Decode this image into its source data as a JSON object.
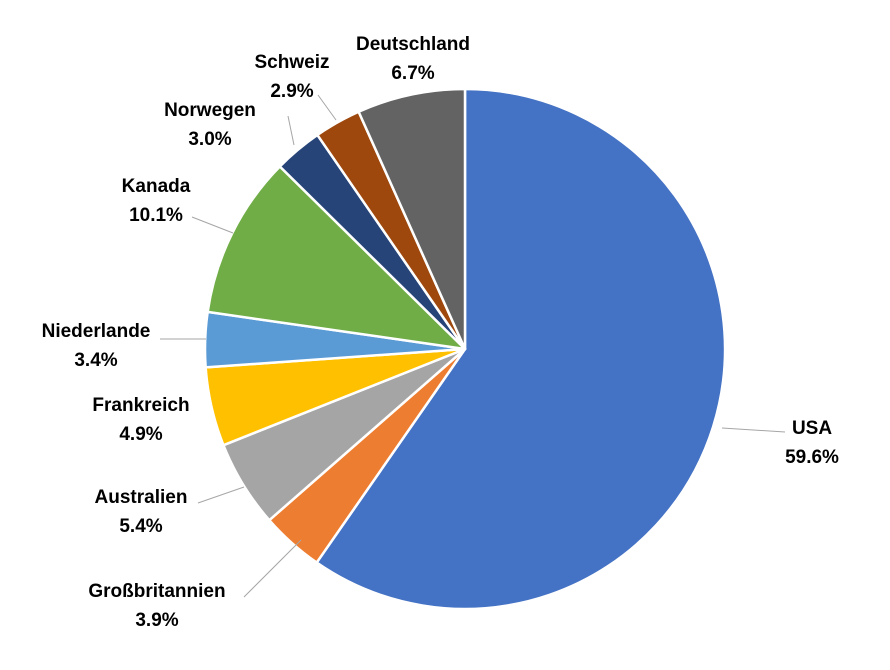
{
  "chart_data": {
    "type": "pie",
    "title": "",
    "start": "12 o'clock",
    "direction": "clockwise",
    "categories": [
      "USA",
      "Großbritannien",
      "Australien",
      "Frankreich",
      "Niederlande",
      "Kanada",
      "Norwegen",
      "Schweiz",
      "Deutschland"
    ],
    "values": [
      59.6,
      3.9,
      5.4,
      4.9,
      3.4,
      10.1,
      3.0,
      2.9,
      6.7
    ],
    "value_labels": [
      "59.6%",
      "3.9%",
      "5.4%",
      "4.9%",
      "3.4%",
      "10.1%",
      "3.0%",
      "2.9%",
      "6.7%"
    ],
    "colors": [
      "#4472C4",
      "#ED7D31",
      "#A5A5A5",
      "#FFC000",
      "#5B9BD5",
      "#70AD47",
      "#264478",
      "#9E480E",
      "#636363"
    ],
    "slice_border_color": "#ffffff",
    "leader_line_color": "#A6A6A6",
    "label_color": "#000000"
  }
}
